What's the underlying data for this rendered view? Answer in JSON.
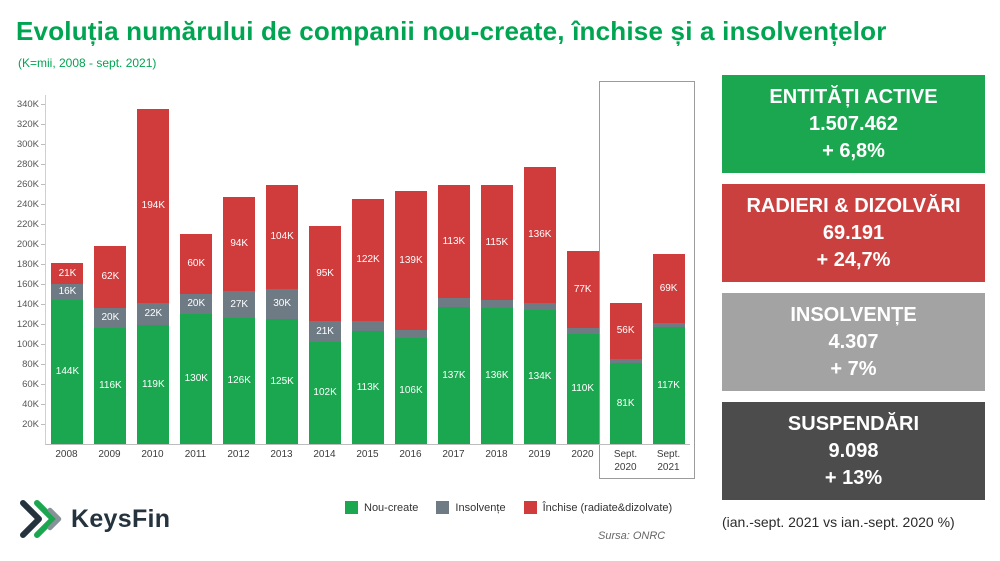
{
  "header": {
    "title": "Evoluția numărului de companii nou-create, închise și a insolvențelor",
    "subtitle": "(K=mii, 2008 - sept. 2021)"
  },
  "chart_data": {
    "type": "bar",
    "stacked": true,
    "title": "Evoluția numărului de companii nou-create, închise și a insolvențelor",
    "unit": "K",
    "categories": [
      "2008",
      "2009",
      "2010",
      "2011",
      "2012",
      "2013",
      "2014",
      "2015",
      "2016",
      "2017",
      "2018",
      "2019",
      "2020",
      "Sept. 2020",
      "Sept. 2021"
    ],
    "series": [
      {
        "name": "Nou-create",
        "color": "#1ba750",
        "values": [
          144,
          116,
          119,
          130,
          126,
          125,
          102,
          113,
          106,
          137,
          136,
          134,
          110,
          81,
          117
        ]
      },
      {
        "name": "Insolvențe",
        "color": "#6e7b84",
        "values": [
          16,
          20,
          22,
          20,
          27,
          30,
          21,
          10,
          8,
          9,
          8,
          7,
          6,
          4,
          4
        ]
      },
      {
        "name": "Închise (radiate&dizolvate)",
        "color": "#d03b3c",
        "values": [
          21,
          62,
          194,
          60,
          94,
          104,
          95,
          122,
          139,
          113,
          115,
          136,
          77,
          56,
          69
        ]
      }
    ],
    "ylim": [
      0,
      350
    ],
    "yticks": [
      "20K",
      "40K",
      "60K",
      "80K",
      "100K",
      "120K",
      "140K",
      "160K",
      "180K",
      "200K",
      "220K",
      "240K",
      "260K",
      "280K",
      "300K",
      "320K",
      "340K"
    ],
    "legend_position": "bottom",
    "grid": false,
    "highlight_last_n": 2,
    "min_label_height": 14
  },
  "source": "Sursa: ONRC",
  "stats": [
    {
      "title": "ENTITĂȚI ACTIVE",
      "value": "1.507.462",
      "change": "+ 6,8%",
      "bg": "#1ba750"
    },
    {
      "title": "RADIERI & DIZOLVĂRI",
      "value": "69.191",
      "change": "+ 24,7%",
      "bg": "#c9403e"
    },
    {
      "title": "INSOLVENȚE",
      "value": "4.307",
      "change": "+ 7%",
      "bg": "#a3a3a3"
    },
    {
      "title": "SUSPENDĂRI",
      "value": "9.098",
      "change": "+ 13%",
      "bg": "#4c4c4c"
    }
  ],
  "footnote": "(ian.-sept. 2021 vs ian.-sept. 2020 %)",
  "logo": {
    "text": "KeysFin"
  }
}
